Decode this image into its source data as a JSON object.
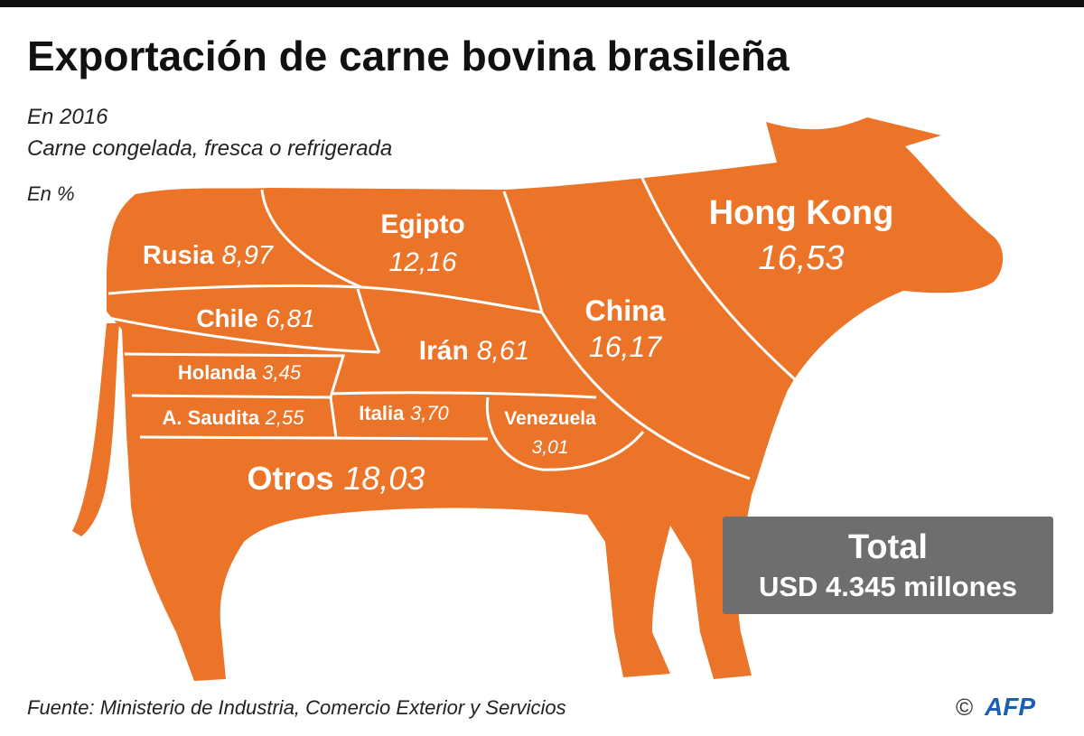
{
  "header": {
    "title": "Exportación de carne bovina brasileña",
    "subtitle_lines": [
      "En 2016",
      "Carne congelada, fresca o refrigerada"
    ],
    "unit": "En %"
  },
  "regions": [
    {
      "name": "Rusia",
      "value": "8,97"
    },
    {
      "name": "Egipto",
      "value": "12,16"
    },
    {
      "name": "Hong Kong",
      "value": "16,53"
    },
    {
      "name": "Chile",
      "value": "6,81"
    },
    {
      "name": "China",
      "value": "16,17"
    },
    {
      "name": "Irán",
      "value": "8,61"
    },
    {
      "name": "Holanda",
      "value": "3,45"
    },
    {
      "name": "A. Saudita",
      "value": "2,55"
    },
    {
      "name": "Italia",
      "value": "3,70"
    },
    {
      "name": "Venezuela",
      "value": "3,01"
    },
    {
      "name": "Otros",
      "value": "18,03"
    }
  ],
  "total": {
    "label": "Total",
    "value": "USD 4.345 millones"
  },
  "footer": {
    "source": "Fuente: Ministerio de Industria, Comercio Exterior y Servicios",
    "credit": "©",
    "logo": "AFP"
  }
}
